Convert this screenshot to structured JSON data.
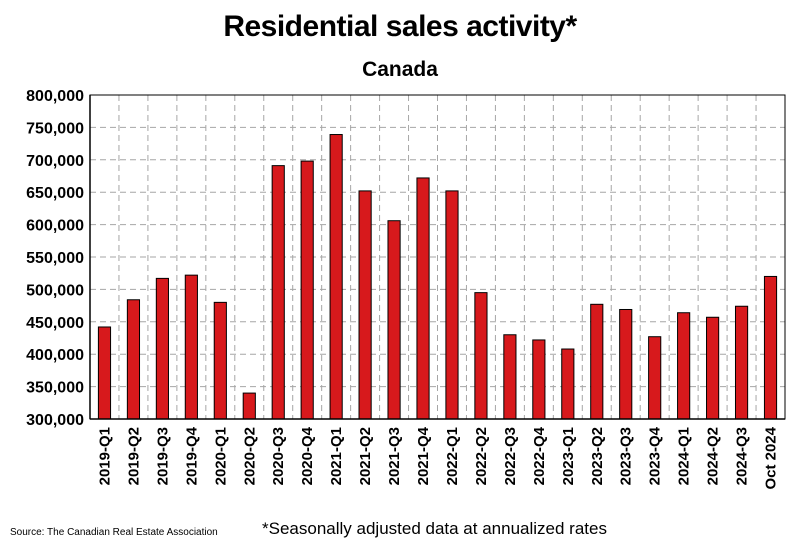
{
  "title": "Residential sales activity*",
  "subtitle": "Canada",
  "source": "Source: The Canadian Real Estate Association",
  "footnote": "*Seasonally adjusted data at annualized rates",
  "colors": {
    "bar": "#d7191c",
    "bar_edge": "#000000",
    "grid": "#a6a6a6",
    "axis": "#000000"
  },
  "chart_data": {
    "type": "bar",
    "title": "Residential sales activity*",
    "subtitle": "Canada",
    "categories": [
      "2019-Q1",
      "2019-Q2",
      "2019-Q3",
      "2019-Q4",
      "2020-Q1",
      "2020-Q2",
      "2020-Q3",
      "2020-Q4",
      "2021-Q1",
      "2021-Q2",
      "2021-Q3",
      "2021-Q4",
      "2022-Q1",
      "2022-Q2",
      "2022-Q3",
      "2022-Q4",
      "2023-Q1",
      "2023-Q2",
      "2023-Q3",
      "2023-Q4",
      "2024-Q1",
      "2024-Q2",
      "2024-Q3",
      "Oct 2024"
    ],
    "values": [
      442000,
      484000,
      517000,
      522000,
      480000,
      340000,
      691000,
      698000,
      739000,
      652000,
      606000,
      672000,
      652000,
      495000,
      430000,
      422000,
      408000,
      477000,
      469000,
      427000,
      464000,
      457000,
      474000,
      520000
    ],
    "ylim": [
      300000,
      800000
    ],
    "yticks": [
      "300,000",
      "350,000",
      "400,000",
      "450,000",
      "500,000",
      "550,000",
      "600,000",
      "650,000",
      "700,000",
      "750,000",
      "800,000"
    ],
    "xlabel": "",
    "ylabel": "",
    "grid": true,
    "legend": "none"
  }
}
